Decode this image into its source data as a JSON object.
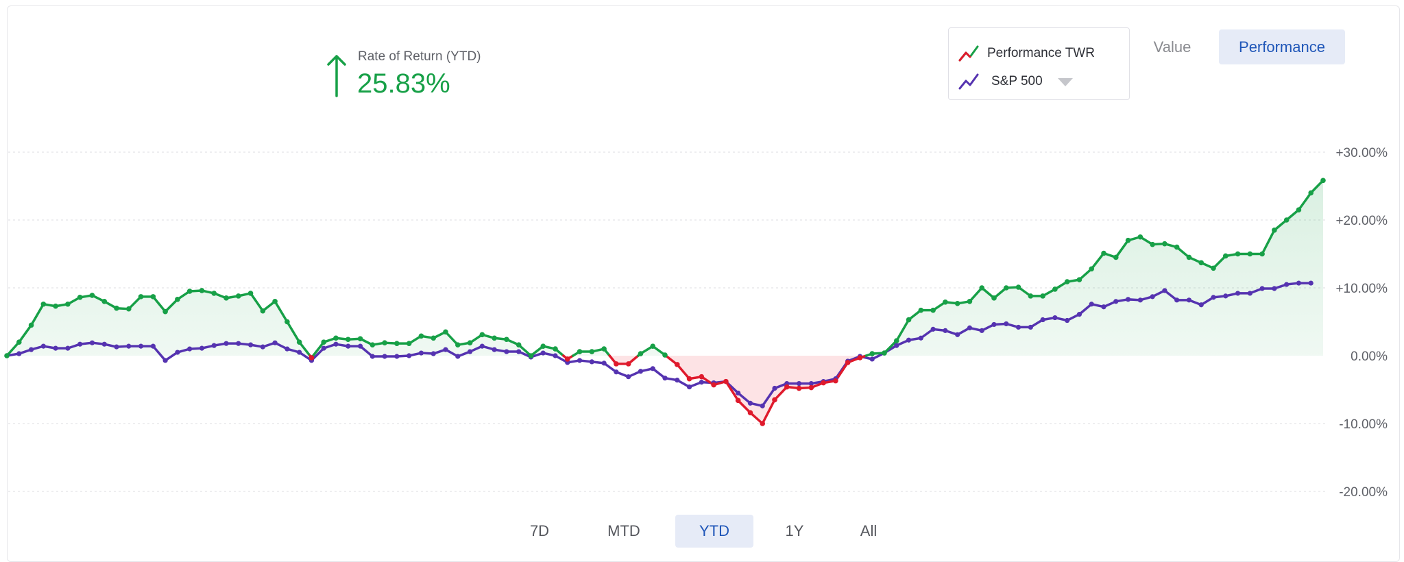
{
  "header": {
    "ror_label": "Rate of Return (YTD)",
    "ror_value": "25.83%",
    "ror_direction": "up",
    "ror_color": "#17a047"
  },
  "legend": {
    "items": [
      {
        "label": "Performance TWR",
        "icon": "trend-line-icon"
      },
      {
        "label": "S&P 500",
        "icon": "trend-line-icon"
      }
    ]
  },
  "view_toggle": {
    "value_label": "Value",
    "performance_label": "Performance",
    "active": "Performance"
  },
  "range_tabs": {
    "items": [
      "7D",
      "MTD",
      "YTD",
      "1Y",
      "All"
    ],
    "active": "YTD"
  },
  "colors": {
    "positive": "#17a047",
    "negative": "#df1a2c",
    "benchmark": "#5533b0",
    "positive_fill": "#e8f5ec",
    "negative_fill": "#fde3e5",
    "active_bg": "#e6ebf7",
    "active_text": "#1f56b8"
  },
  "chart_data": {
    "type": "line",
    "ylim": [
      -20,
      30
    ],
    "yticks": [
      "+30.00%",
      "+20.00%",
      "+10.00%",
      "0.00%",
      "-10.00%",
      "-20.00%"
    ],
    "ytick_values": [
      30,
      20,
      10,
      0,
      -10,
      -20
    ],
    "grid": true,
    "series": [
      {
        "name": "Performance TWR",
        "values": [
          0,
          2,
          4.5,
          7.6,
          7.3,
          7.6,
          8.6,
          8.9,
          8,
          7,
          6.9,
          8.7,
          8.7,
          6.5,
          8.3,
          9.5,
          9.6,
          9.2,
          8.5,
          8.8,
          9.2,
          6.6,
          8,
          5,
          2,
          -0.3,
          2,
          2.6,
          2.4,
          2.5,
          1.6,
          1.9,
          1.8,
          1.8,
          2.9,
          2.6,
          3.5,
          1.6,
          1.9,
          3.1,
          2.6,
          2.4,
          1.6,
          0,
          1.4,
          1,
          -0.5,
          0.6,
          0.6,
          1,
          -1.2,
          -1.2,
          0.3,
          1.4,
          0.1,
          -1.3,
          -3.4,
          -3.1,
          -4.3,
          -3.8,
          -6.6,
          -8.4,
          -10,
          -6.5,
          -4.6,
          -4.8,
          -4.7,
          -4,
          -3.7,
          -1,
          -0.3,
          0.3,
          0.4,
          2.2,
          5.3,
          6.7,
          6.7,
          7.9,
          7.7,
          8,
          10,
          8.5,
          10,
          10.1,
          8.8,
          8.8,
          9.8,
          10.9,
          11.2,
          12.8,
          15.1,
          14.5,
          17,
          17.5,
          16.4,
          16.5,
          16,
          14.5,
          13.7,
          12.9,
          14.7,
          15,
          15,
          15,
          18.5,
          20,
          21.5,
          24,
          25.83
        ]
      },
      {
        "name": "S&P 500",
        "values": [
          0,
          0.3,
          0.9,
          1.4,
          1.1,
          1.1,
          1.7,
          1.9,
          1.7,
          1.3,
          1.4,
          1.4,
          1.4,
          -0.7,
          0.5,
          1,
          1.1,
          1.5,
          1.8,
          1.8,
          1.6,
          1.3,
          1.9,
          1,
          0.5,
          -0.7,
          1.1,
          1.7,
          1.4,
          1.4,
          -0.1,
          -0.1,
          -0.1,
          0,
          0.4,
          0.3,
          0.9,
          -0.1,
          0.6,
          1.4,
          0.9,
          0.6,
          0.6,
          -0.2,
          0.4,
          0,
          -1,
          -0.7,
          -0.9,
          -1.1,
          -2.4,
          -3.1,
          -2.3,
          -1.9,
          -3.3,
          -3.6,
          -4.6,
          -3.9,
          -4,
          -3.8,
          -5.5,
          -7,
          -7.4,
          -4.8,
          -4.1,
          -4.1,
          -4.1,
          -3.8,
          -3.4,
          -0.8,
          -0.1,
          -0.5,
          0.4,
          1.5,
          2.3,
          2.6,
          3.9,
          3.7,
          3.1,
          4.1,
          3.7,
          4.6,
          4.7,
          4.2,
          4.2,
          5.3,
          5.6,
          5.2,
          6.1,
          7.6,
          7.2,
          8,
          8.3,
          8.2,
          8.7,
          9.6,
          8.2,
          8.2,
          7.5,
          8.6,
          8.8,
          9.2,
          9.2,
          9.9,
          9.9,
          10.5,
          10.7,
          10.7
        ]
      }
    ]
  }
}
